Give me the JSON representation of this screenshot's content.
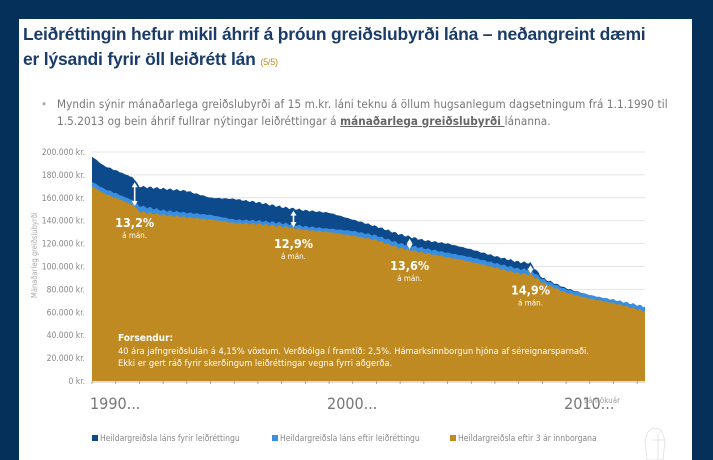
{
  "slide": {
    "title": "Leiðréttingin hefur mikil áhrif á þróun greiðslubyrði lána – neðangreint dæmi er lýsandi fyrir öll leiðrétt lán",
    "title_page": "(5/5)",
    "bullet_before": "Myndin sýnir mánaðarlega greiðslubyrði af 15 m.kr. láni teknu á öllum hugsanlegum dagsetningum frá 1.1.1990 til 1.5.2013 og bein áhrif fullrar nýtingar leiðréttingar á ",
    "bullet_underlined": "mánaðarlega greiðslubyrði ",
    "bullet_after": "lánanna.",
    "bullet_glyph": "•",
    "colors": {
      "frame": "#05305a",
      "title": "#1b3c69",
      "accent": "#c08a22"
    }
  },
  "chart_data": {
    "type": "area",
    "title": "",
    "xlabel": "Lántökuár",
    "ylabel": "Mánaðarleg greiðslubyrði",
    "xlim": [
      1990,
      2013.33
    ],
    "ylim": [
      0,
      200000
    ],
    "grid": true,
    "y_ticks": [
      "0 kr.",
      "20.000 kr.",
      "40.000 kr.",
      "60.000 kr.",
      "80.000 kr.",
      "100.000 kr.",
      "120.000 kr.",
      "140.000 kr.",
      "160.000 kr.",
      "180.000 kr.",
      "200.000 kr."
    ],
    "y_tick_values": [
      0,
      20000,
      40000,
      60000,
      80000,
      100000,
      120000,
      140000,
      160000,
      180000,
      200000
    ],
    "x_tick_labels": [
      "1990...",
      "2000...",
      "2010..."
    ],
    "x_tick_values": [
      1990,
      2000,
      2010
    ],
    "x": [
      1990,
      1990.5,
      1991,
      1991.7,
      1992,
      1993,
      1994,
      1995,
      1996,
      1997,
      1998,
      1999,
      2000,
      2001,
      2002,
      2003,
      2004,
      2005,
      2006,
      2007,
      2008,
      2008.5,
      2009,
      2010,
      2011,
      2012,
      2013.33
    ],
    "series": [
      {
        "name": "Heildargreiðsla láns fyrir leiðréttingu",
        "color": "#0d4a8c",
        "values": [
          196000,
          188000,
          184000,
          178000,
          170000,
          168000,
          166000,
          160000,
          159000,
          156000,
          152000,
          149000,
          147000,
          141000,
          135000,
          128000,
          123000,
          120000,
          115000,
          109000,
          104000,
          103000,
          90000,
          81000,
          75000,
          70000,
          64000
        ]
      },
      {
        "name": "Heildargreiðsla láns eftir leiðréttingu",
        "color": "#3a8ee0",
        "values": [
          174000,
          168000,
          164000,
          158000,
          153000,
          149000,
          147000,
          145000,
          141000,
          140000,
          138000,
          135000,
          133000,
          131000,
          127000,
          120000,
          116000,
          112000,
          108000,
          103000,
          98000,
          97000,
          89000,
          80000,
          75000,
          71000,
          65000
        ]
      },
      {
        "name": "Heildargreiðsla eftir 3 ár innborgana",
        "color": "#c08a22",
        "values": [
          170000,
          164000,
          160000,
          154000,
          148000,
          145000,
          143000,
          141000,
          138000,
          137000,
          135000,
          132000,
          130000,
          127000,
          123000,
          116000,
          112000,
          108000,
          104000,
          99000,
          94000,
          93000,
          86000,
          77000,
          72000,
          68000,
          61000
        ]
      }
    ],
    "annotations": [
      {
        "x": 1991.8,
        "pct": "13,2%",
        "sub": "á mán."
      },
      {
        "x": 1998.5,
        "pct": "12,9%",
        "sub": "á mán."
      },
      {
        "x": 2003.4,
        "pct": "13,6%",
        "sub": "á mán."
      },
      {
        "x": 2008.5,
        "pct": "14,9%",
        "sub": "á mán."
      }
    ],
    "assumptions": {
      "heading": "Forsendur:",
      "line1": "40 ára jafngreiðslulán á 4,15% vöxtum. Verðbólga í framtíð: 2,5%.  Hámarksinnborgun hjóna af séreignarsparnaði.",
      "line2": "Ekki er gert ráð fyrir skerðingum leiðréttingar vegna fyrri aðgerða."
    },
    "legend_position": "bottom"
  }
}
